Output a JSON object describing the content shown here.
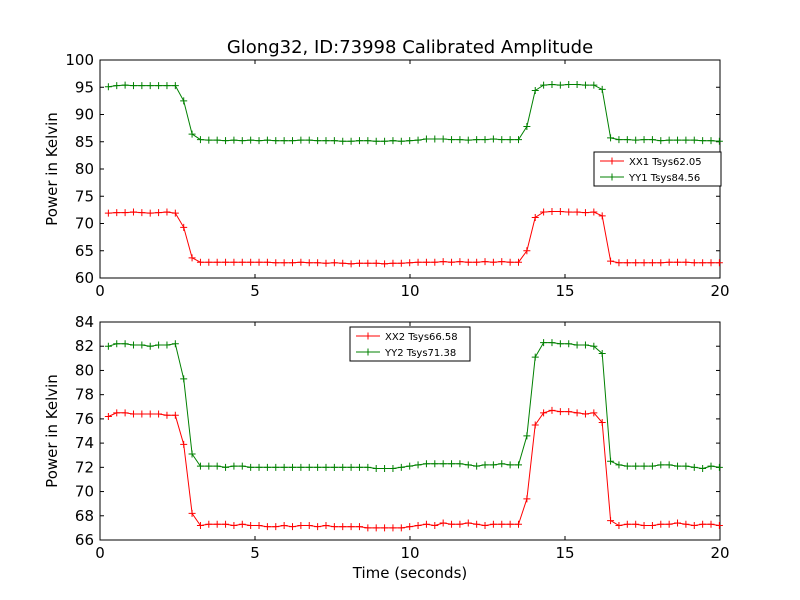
{
  "figure": {
    "title": "Glong32, ID:73998 Calibrated Amplitude",
    "xlabel": "Time (seconds)"
  },
  "chart_data": [
    {
      "type": "line",
      "title": "Glong32, ID:73998 Calibrated Amplitude",
      "xlabel": "",
      "ylabel": "Power in Kelvin",
      "xlim": [
        0,
        20
      ],
      "ylim": [
        60,
        100
      ],
      "xticks": [
        0,
        5,
        10,
        15,
        20
      ],
      "yticks": [
        60,
        65,
        70,
        75,
        80,
        85,
        90,
        95,
        100
      ],
      "grid": false,
      "legend_position": "right",
      "x": [
        0.27,
        0.54,
        0.81,
        1.08,
        1.35,
        1.62,
        1.89,
        2.16,
        2.43,
        2.7,
        2.97,
        3.24,
        3.51,
        3.78,
        4.05,
        4.32,
        4.59,
        4.86,
        5.13,
        5.4,
        5.67,
        5.94,
        6.21,
        6.48,
        6.75,
        7.02,
        7.29,
        7.56,
        7.83,
        8.1,
        8.37,
        8.64,
        8.91,
        9.18,
        9.45,
        9.72,
        9.99,
        10.26,
        10.53,
        10.8,
        11.07,
        11.34,
        11.61,
        11.88,
        12.15,
        12.42,
        12.69,
        12.96,
        13.23,
        13.5,
        13.77,
        14.04,
        14.31,
        14.58,
        14.85,
        15.12,
        15.39,
        15.66,
        15.93,
        16.2,
        16.47,
        16.74,
        17.01,
        17.28,
        17.55,
        17.82,
        18.09,
        18.36,
        18.63,
        18.9,
        19.17,
        19.44,
        19.71,
        19.98
      ],
      "series": [
        {
          "name": "XX1 Tsys62.05",
          "color": "#ff0000",
          "values": [
            71.9,
            72.0,
            72.0,
            72.1,
            72.0,
            71.9,
            72.0,
            72.1,
            71.9,
            69.3,
            63.7,
            62.9,
            62.9,
            62.9,
            62.9,
            62.9,
            62.9,
            62.9,
            62.9,
            62.9,
            62.8,
            62.8,
            62.8,
            62.9,
            62.8,
            62.8,
            62.7,
            62.8,
            62.7,
            62.6,
            62.7,
            62.7,
            62.7,
            62.6,
            62.7,
            62.7,
            62.8,
            62.9,
            62.9,
            62.9,
            63.0,
            62.9,
            63.0,
            62.9,
            62.9,
            63.0,
            62.9,
            63.0,
            62.9,
            62.9,
            65.0,
            71.1,
            72.1,
            72.2,
            72.2,
            72.1,
            72.1,
            72.0,
            72.1,
            71.4,
            63.1,
            62.8,
            62.8,
            62.8,
            62.8,
            62.8,
            62.8,
            62.9,
            62.9,
            62.9,
            62.8,
            62.8,
            62.8,
            62.8
          ]
        },
        {
          "name": "YY1 Tsys84.56",
          "color": "#008000",
          "values": [
            95.1,
            95.3,
            95.4,
            95.3,
            95.3,
            95.3,
            95.3,
            95.3,
            95.3,
            92.5,
            86.4,
            85.4,
            85.3,
            85.3,
            85.2,
            85.3,
            85.2,
            85.3,
            85.2,
            85.3,
            85.2,
            85.2,
            85.2,
            85.3,
            85.3,
            85.2,
            85.2,
            85.2,
            85.1,
            85.1,
            85.2,
            85.2,
            85.1,
            85.1,
            85.2,
            85.1,
            85.2,
            85.3,
            85.5,
            85.5,
            85.5,
            85.4,
            85.4,
            85.3,
            85.4,
            85.4,
            85.5,
            85.4,
            85.4,
            85.4,
            87.8,
            94.4,
            95.4,
            95.5,
            95.4,
            95.5,
            95.5,
            95.4,
            95.4,
            94.6,
            85.7,
            85.4,
            85.4,
            85.3,
            85.4,
            85.4,
            85.2,
            85.3,
            85.3,
            85.3,
            85.3,
            85.2,
            85.2,
            85.1
          ]
        }
      ]
    },
    {
      "type": "line",
      "title": "",
      "xlabel": "Time (seconds)",
      "ylabel": "Power in Kelvin",
      "xlim": [
        0,
        20
      ],
      "ylim": [
        66,
        84
      ],
      "xticks": [
        0,
        5,
        10,
        15,
        20
      ],
      "yticks": [
        66,
        68,
        70,
        72,
        74,
        76,
        78,
        80,
        82,
        84
      ],
      "grid": false,
      "legend_position": "top-center",
      "x": [
        0.27,
        0.54,
        0.81,
        1.08,
        1.35,
        1.62,
        1.89,
        2.16,
        2.43,
        2.7,
        2.97,
        3.24,
        3.51,
        3.78,
        4.05,
        4.32,
        4.59,
        4.86,
        5.13,
        5.4,
        5.67,
        5.94,
        6.21,
        6.48,
        6.75,
        7.02,
        7.29,
        7.56,
        7.83,
        8.1,
        8.37,
        8.64,
        8.91,
        9.18,
        9.45,
        9.72,
        9.99,
        10.26,
        10.53,
        10.8,
        11.07,
        11.34,
        11.61,
        11.88,
        12.15,
        12.42,
        12.69,
        12.96,
        13.23,
        13.5,
        13.77,
        14.04,
        14.31,
        14.58,
        14.85,
        15.12,
        15.39,
        15.66,
        15.93,
        16.2,
        16.47,
        16.74,
        17.01,
        17.28,
        17.55,
        17.82,
        18.09,
        18.36,
        18.63,
        18.9,
        19.17,
        19.44,
        19.71,
        19.98
      ],
      "series": [
        {
          "name": "XX2 Tsys66.58",
          "color": "#ff0000",
          "values": [
            76.2,
            76.5,
            76.5,
            76.4,
            76.4,
            76.4,
            76.4,
            76.3,
            76.3,
            73.9,
            68.2,
            67.2,
            67.3,
            67.3,
            67.3,
            67.2,
            67.3,
            67.2,
            67.2,
            67.1,
            67.1,
            67.2,
            67.1,
            67.2,
            67.2,
            67.1,
            67.2,
            67.1,
            67.1,
            67.1,
            67.1,
            67.0,
            67.0,
            67.0,
            67.0,
            67.0,
            67.1,
            67.2,
            67.3,
            67.2,
            67.4,
            67.3,
            67.3,
            67.4,
            67.3,
            67.2,
            67.3,
            67.3,
            67.3,
            67.3,
            69.4,
            75.5,
            76.5,
            76.7,
            76.6,
            76.6,
            76.5,
            76.4,
            76.5,
            75.7,
            67.6,
            67.2,
            67.3,
            67.3,
            67.2,
            67.2,
            67.3,
            67.3,
            67.4,
            67.3,
            67.2,
            67.3,
            67.3,
            67.2
          ]
        },
        {
          "name": "YY2 Tsys71.38",
          "color": "#008000",
          "values": [
            82.0,
            82.2,
            82.2,
            82.1,
            82.1,
            82.0,
            82.1,
            82.1,
            82.2,
            79.3,
            73.1,
            72.1,
            72.1,
            72.1,
            72.0,
            72.1,
            72.1,
            72.0,
            72.0,
            72.0,
            72.0,
            72.0,
            72.0,
            72.0,
            72.0,
            72.0,
            72.0,
            72.0,
            72.0,
            72.0,
            72.0,
            72.0,
            71.9,
            71.9,
            71.9,
            72.0,
            72.1,
            72.2,
            72.3,
            72.3,
            72.3,
            72.3,
            72.3,
            72.2,
            72.1,
            72.2,
            72.2,
            72.3,
            72.2,
            72.2,
            74.6,
            81.1,
            82.3,
            82.3,
            82.2,
            82.2,
            82.1,
            82.1,
            82.0,
            81.4,
            72.5,
            72.2,
            72.1,
            72.1,
            72.1,
            72.1,
            72.2,
            72.2,
            72.1,
            72.1,
            72.0,
            71.9,
            72.1,
            72.0
          ]
        }
      ]
    }
  ]
}
